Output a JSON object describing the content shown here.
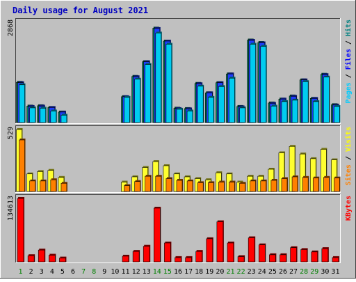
{
  "chart_data": {
    "type": "bar",
    "title": "Daily usage for August 2021",
    "categories": [
      "1",
      "2",
      "3",
      "4",
      "5",
      "6",
      "7",
      "8",
      "9",
      "10",
      "11",
      "12",
      "13",
      "14",
      "15",
      "16",
      "17",
      "18",
      "19",
      "20",
      "21",
      "22",
      "23",
      "24",
      "25",
      "26",
      "27",
      "28",
      "29",
      "30",
      "31"
    ],
    "weekend_days": [
      "1",
      "7",
      "8",
      "14",
      "15",
      "21",
      "22",
      "28",
      "29"
    ],
    "panels": [
      {
        "id": "hits-files-pages",
        "ymax_label": "2868",
        "ylim": [
          0,
          2868
        ],
        "legend": [
          {
            "label": "Pages",
            "color": "#00ccff"
          },
          {
            "label": "Files",
            "color": "#0000ff"
          },
          {
            "label": "Hits",
            "color": "#008080"
          }
        ],
        "series": [
          {
            "name": "Hits",
            "color": "#00805a",
            "values": [
              1150,
              470,
              480,
              430,
              300,
              0,
              0,
              0,
              0,
              0,
              740,
              1320,
              1740,
              2700,
              2330,
              410,
              400,
              1120,
              850,
              1140,
              1390,
              460,
              2360,
              2290,
              560,
              670,
              760,
              1220,
              690,
              1380,
              510
            ]
          },
          {
            "name": "Files",
            "color": "#1e3cff",
            "values": [
              1140,
              460,
              470,
              430,
              300,
              0,
              0,
              0,
              0,
              0,
              740,
              1310,
              1740,
              2690,
              2330,
              400,
              390,
              1110,
              850,
              1140,
              1390,
              450,
              2350,
              2280,
              550,
              670,
              750,
              1220,
              690,
              1370,
              500
            ]
          },
          {
            "name": "Pages",
            "color": "#00ccf0",
            "values": [
              1080,
              420,
              410,
              330,
              210,
              0,
              0,
              0,
              0,
              0,
              720,
              1240,
              1660,
              2560,
              2240,
              380,
              330,
              1040,
              720,
              1030,
              1270,
              420,
              2240,
              2180,
              470,
              600,
              640,
              1170,
              600,
              1300,
              460
            ]
          }
        ]
      },
      {
        "id": "visits-sites",
        "ymax_label": "529",
        "ylim": [
          0,
          529
        ],
        "legend": [
          {
            "label": "Sites",
            "color": "#ff8000"
          },
          {
            "label": "Visits",
            "color": "#ffff00"
          }
        ],
        "series": [
          {
            "name": "Visits",
            "color": "#ffff30",
            "values": [
              529,
              150,
              170,
              180,
              120,
              0,
              0,
              0,
              0,
              0,
              80,
              125,
              205,
              255,
              220,
              150,
              125,
              110,
              100,
              160,
              150,
              80,
              130,
              130,
              190,
              330,
              385,
              320,
              280,
              360,
              270
            ]
          },
          {
            "name": "Sites",
            "color": "#ff8000",
            "values": [
              440,
              90,
              90,
              100,
              70,
              0,
              0,
              0,
              0,
              0,
              50,
              85,
              130,
              130,
              110,
              95,
              90,
              75,
              75,
              80,
              80,
              70,
              90,
              90,
              95,
              110,
              125,
              120,
              115,
              120,
              115
            ]
          }
        ]
      },
      {
        "id": "kbytes",
        "ymax_label": "134613",
        "ylim": [
          0,
          134613
        ],
        "legend": [
          {
            "label": "KBytes",
            "color": "#ff0000"
          }
        ],
        "series": [
          {
            "name": "KBytes",
            "color": "#ff0000",
            "values": [
              134613,
              13000,
              25000,
              14000,
              8000,
              0,
              0,
              0,
              0,
              0,
              12000,
              22000,
              33000,
              114000,
              40000,
              9000,
              9000,
              22000,
              49000,
              85000,
              40000,
              11000,
              51000,
              36000,
              15000,
              15000,
              30000,
              26000,
              21000,
              28000,
              9000
            ]
          }
        ]
      }
    ]
  }
}
